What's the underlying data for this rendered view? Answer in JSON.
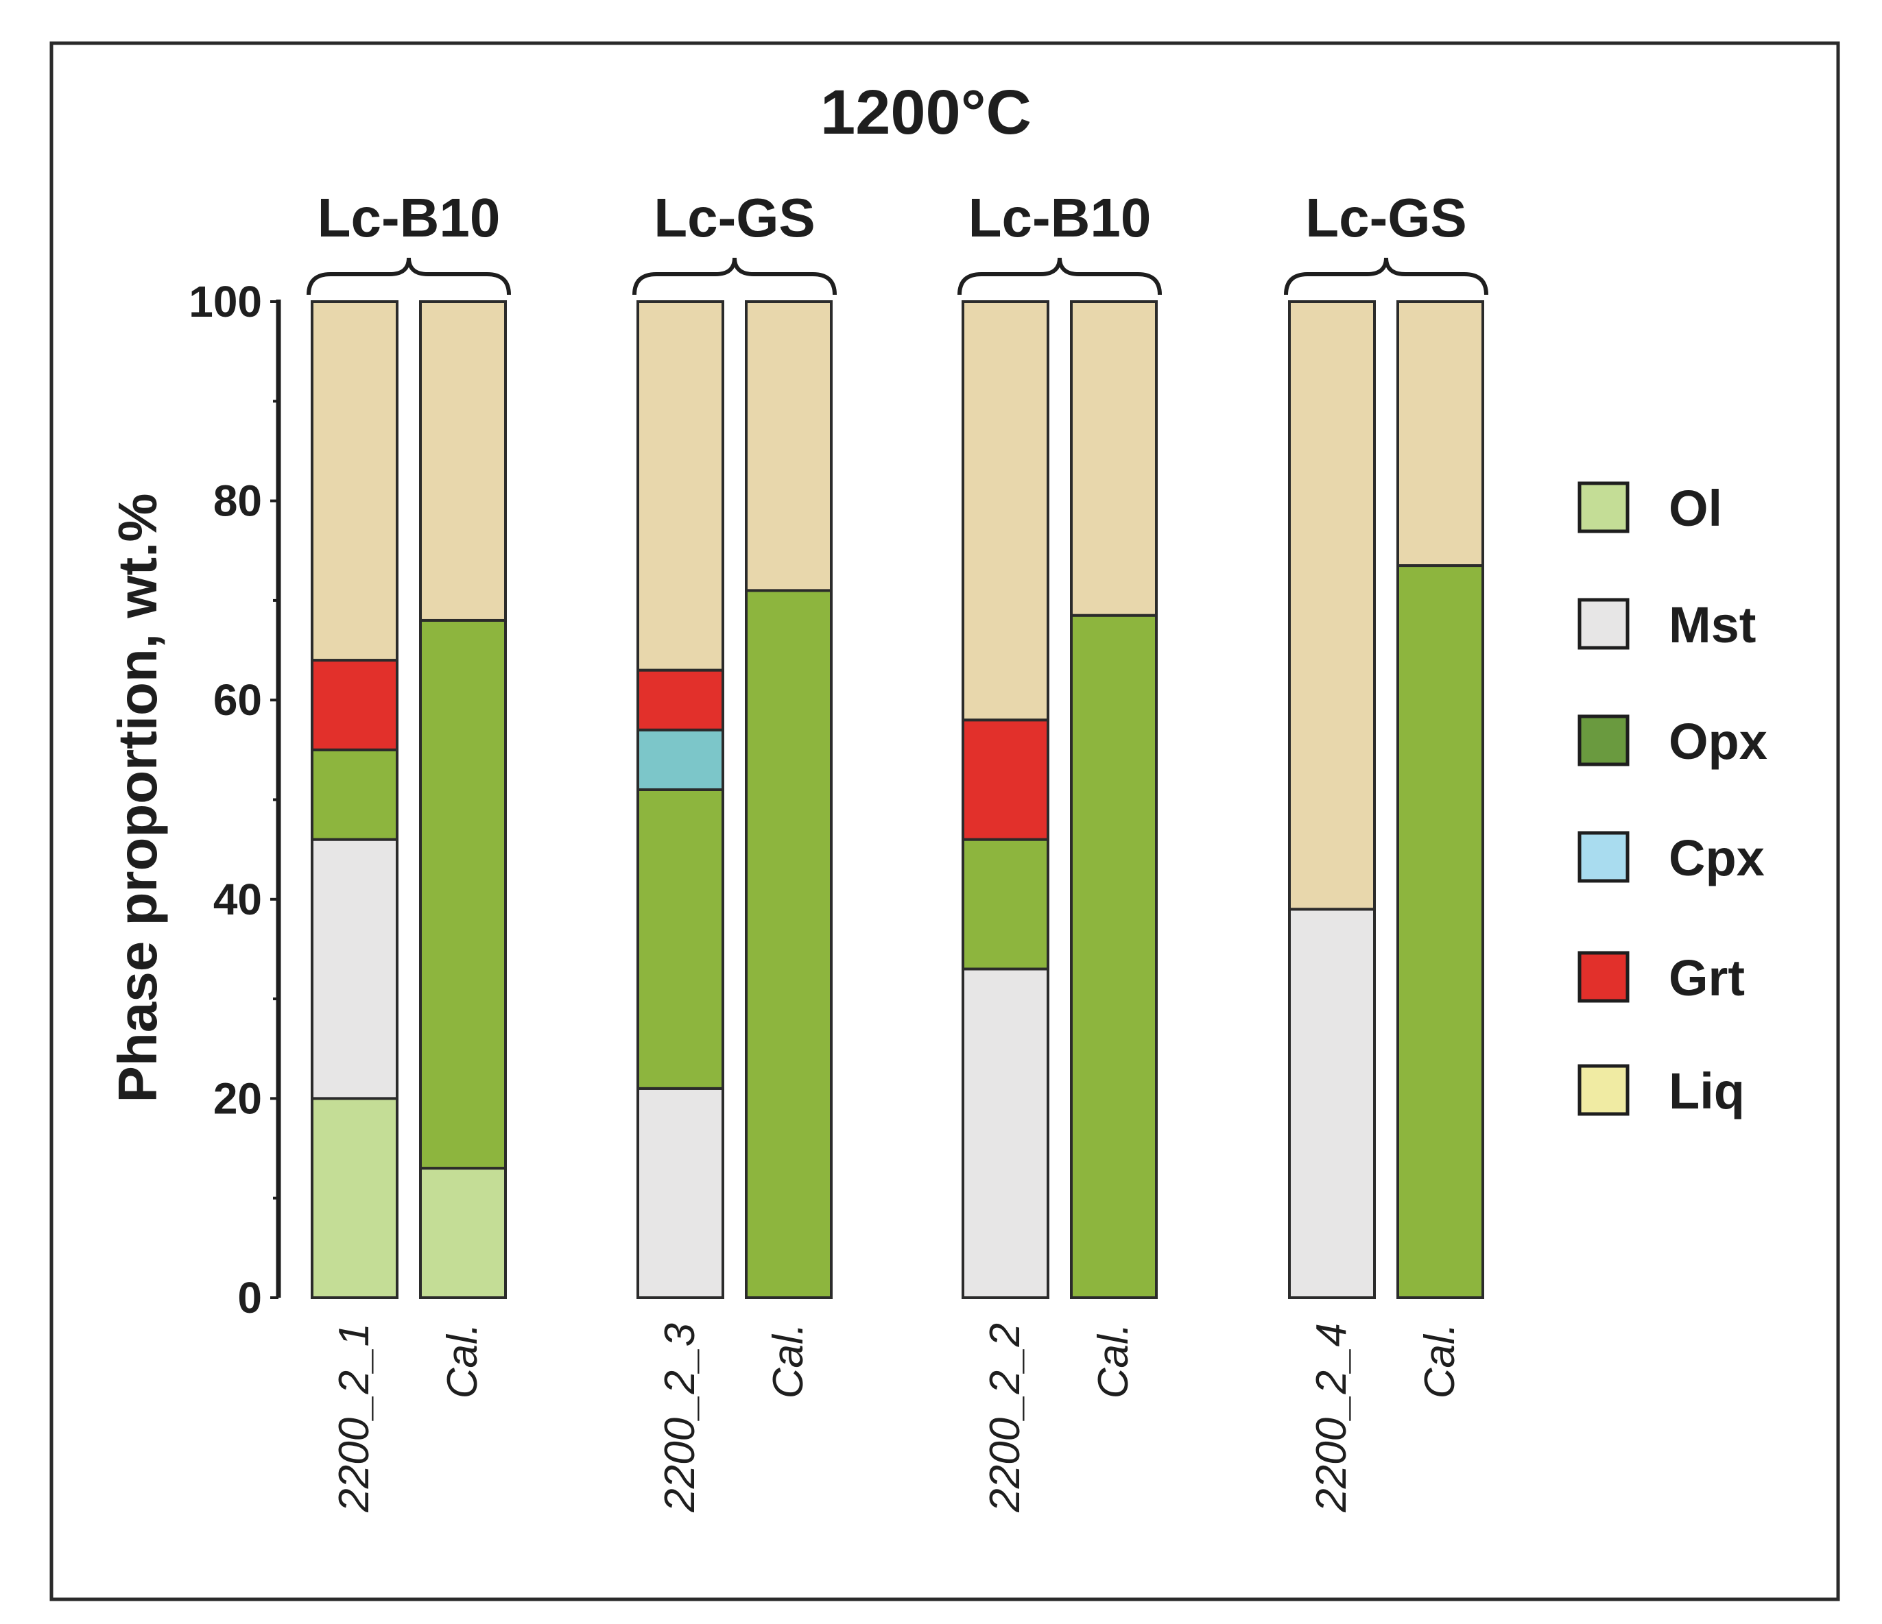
{
  "chart_data": {
    "type": "bar",
    "stacked": true,
    "title": "1200°C",
    "xlabel": "",
    "ylabel": "Phase proportion, wt.%",
    "ylim": [
      0,
      100
    ],
    "yticks": [
      0,
      20,
      40,
      60,
      80,
      100
    ],
    "legend_position": "right",
    "phases": [
      {
        "name": "Ol",
        "color": "#c4dd96"
      },
      {
        "name": "Mst",
        "color": "#e7e6e6"
      },
      {
        "name": "Opx",
        "color": "#8db53e"
      },
      {
        "name": "Cpx",
        "color": "#7cc6c9"
      },
      {
        "name": "Grt",
        "color": "#e2302b"
      },
      {
        "name": "Liq",
        "color": "#e8d7ac"
      }
    ],
    "legend": [
      {
        "name": "Ol",
        "color": "#c4dd96"
      },
      {
        "name": "Mst",
        "color": "#e7e6e6"
      },
      {
        "name": "Opx",
        "color": "#6a9a3f"
      },
      {
        "name": "Cpx",
        "color": "#a9dcef"
      },
      {
        "name": "Grt",
        "color": "#e2302b"
      },
      {
        "name": "Liq",
        "color": "#f0eba3"
      }
    ],
    "groups": [
      {
        "label": "Lc-B10",
        "bars": [
          {
            "label": "2200_2_1",
            "segments": {
              "Ol": 20,
              "Mst": 26,
              "Opx": 9,
              "Cpx": 0,
              "Grt": 9,
              "Liq": 36
            }
          },
          {
            "label": "Cal.",
            "segments": {
              "Ol": 13,
              "Mst": 0,
              "Opx": 55,
              "Cpx": 0,
              "Grt": 0,
              "Liq": 32
            }
          }
        ]
      },
      {
        "label": "Lc-GS",
        "bars": [
          {
            "label": "2200_2_3",
            "segments": {
              "Ol": 0,
              "Mst": 21,
              "Opx": 30,
              "Cpx": 6,
              "Grt": 6,
              "Liq": 37
            }
          },
          {
            "label": "Cal.",
            "segments": {
              "Ol": 0,
              "Mst": 0,
              "Opx": 71,
              "Cpx": 0,
              "Grt": 0,
              "Liq": 29
            }
          }
        ]
      },
      {
        "label": "Lc-B10",
        "bars": [
          {
            "label": "2200_2_2",
            "segments": {
              "Ol": 0,
              "Mst": 33,
              "Opx": 13,
              "Cpx": 0,
              "Grt": 12,
              "Liq": 42
            }
          },
          {
            "label": "Cal.",
            "segments": {
              "Ol": 0,
              "Mst": 0,
              "Opx": 68.5,
              "Cpx": 0,
              "Grt": 0,
              "Liq": 31.5
            }
          }
        ]
      },
      {
        "label": "Lc-GS",
        "bars": [
          {
            "label": "2200_2_4",
            "segments": {
              "Ol": 0,
              "Mst": 39,
              "Opx": 0,
              "Cpx": 0,
              "Grt": 0,
              "Liq": 61
            }
          },
          {
            "label": "Cal.",
            "segments": {
              "Ol": 0,
              "Mst": 0,
              "Opx": 73.5,
              "Cpx": 0,
              "Grt": 0,
              "Liq": 26.5
            }
          }
        ]
      }
    ]
  }
}
